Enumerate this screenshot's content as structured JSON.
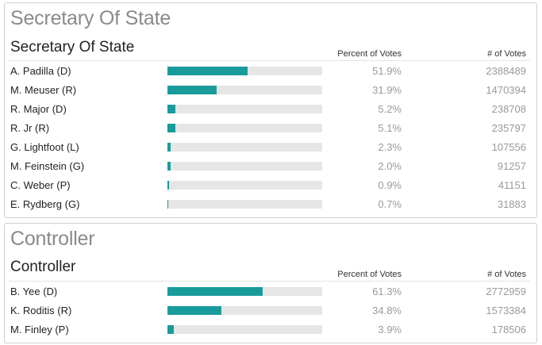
{
  "columns": {
    "percent": "Percent of Votes",
    "votes": "# of Votes"
  },
  "colors": {
    "bar_fill": "#1a9b9b",
    "bar_track": "#e6e6e6",
    "title_gray": "#8a8a8a"
  },
  "races": [
    {
      "title": "Secretary Of State",
      "subtitle": "Secretary Of State",
      "candidates": [
        {
          "name": "A. Padilla (D)",
          "percent": "51.9%",
          "share": 51.9,
          "votes": "2388489"
        },
        {
          "name": "M. Meuser (R)",
          "percent": "31.9%",
          "share": 31.9,
          "votes": "1470394"
        },
        {
          "name": "R. Major (D)",
          "percent": "5.2%",
          "share": 5.2,
          "votes": "238708"
        },
        {
          "name": "R. Jr (R)",
          "percent": "5.1%",
          "share": 5.1,
          "votes": "235797"
        },
        {
          "name": "G. Lightfoot (L)",
          "percent": "2.3%",
          "share": 2.3,
          "votes": "107556"
        },
        {
          "name": "M. Feinstein (G)",
          "percent": "2.0%",
          "share": 2.0,
          "votes": "91257"
        },
        {
          "name": "C. Weber (P)",
          "percent": "0.9%",
          "share": 0.9,
          "votes": "41151"
        },
        {
          "name": "E. Rydberg (G)",
          "percent": "0.7%",
          "share": 0.7,
          "votes": "31883"
        }
      ]
    },
    {
      "title": "Controller",
      "subtitle": "Controller",
      "candidates": [
        {
          "name": "B. Yee (D)",
          "percent": "61.3%",
          "share": 61.3,
          "votes": "2772959"
        },
        {
          "name": "K. Roditis (R)",
          "percent": "34.8%",
          "share": 34.8,
          "votes": "1573384"
        },
        {
          "name": "M. Finley (P)",
          "percent": "3.9%",
          "share": 3.9,
          "votes": "178506"
        }
      ]
    }
  ]
}
